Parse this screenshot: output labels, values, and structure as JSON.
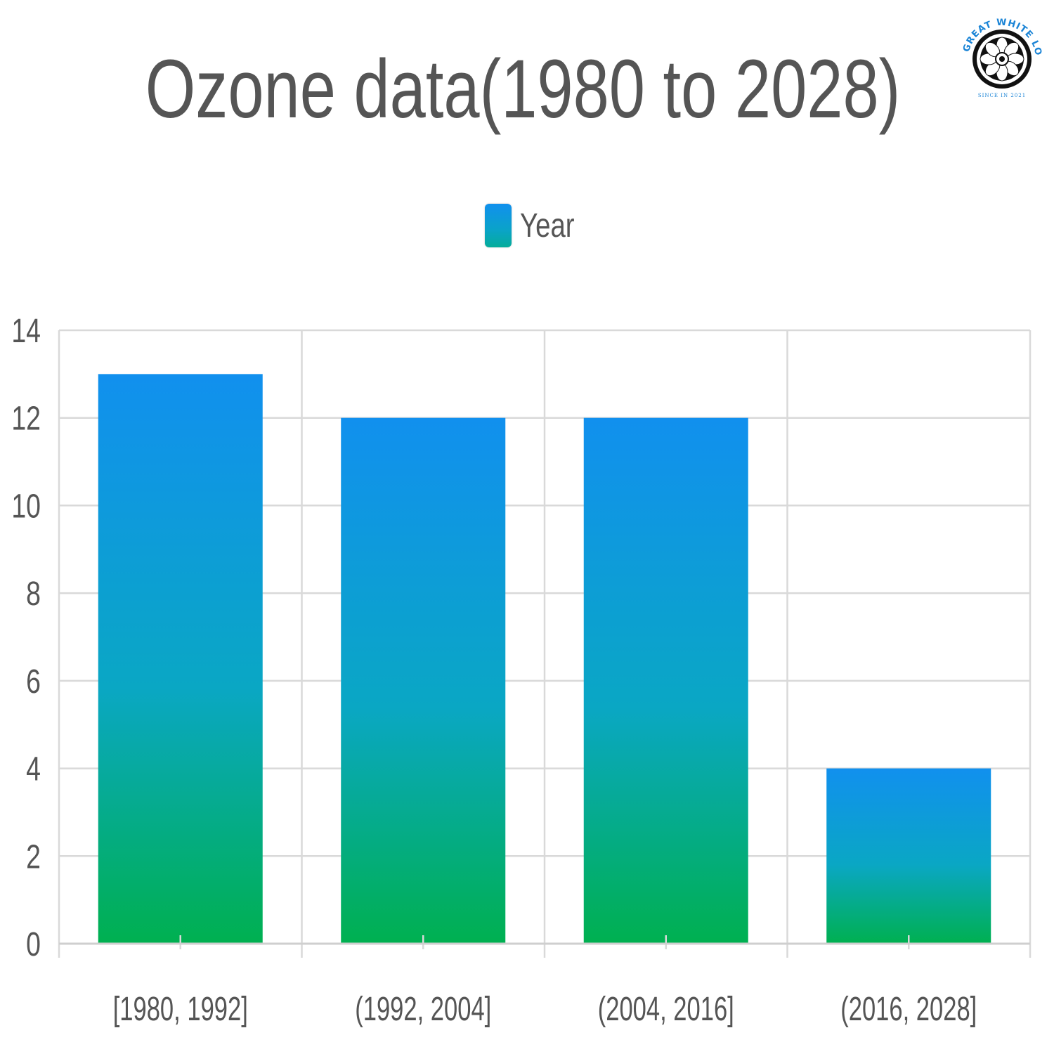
{
  "colors": {
    "bar_top": "#1190ee",
    "bar_bottom": "#00b050",
    "grid": "#d9d9d9",
    "text": "#555555",
    "logo_accent": "#1a84d6"
  },
  "logo": {
    "name": "THE GREAT WHITE LOTUS",
    "tagline": "SINCE IN 2021"
  },
  "chart_data": {
    "type": "bar",
    "title": "Ozone data(1980 to 2028)",
    "legend": {
      "position": "top-center",
      "entries": [
        "Year"
      ]
    },
    "categories": [
      "[1980, 1992]",
      "(1992, 2004]",
      "(2004, 2016]",
      "(2016, 2028]"
    ],
    "series": [
      {
        "name": "Year",
        "values": [
          13,
          12,
          12,
          4
        ]
      }
    ],
    "ylim": [
      0,
      14
    ],
    "yticks": [
      0,
      2,
      4,
      6,
      8,
      10,
      12,
      14
    ],
    "xlabel": "",
    "ylabel": "",
    "grid": true
  }
}
